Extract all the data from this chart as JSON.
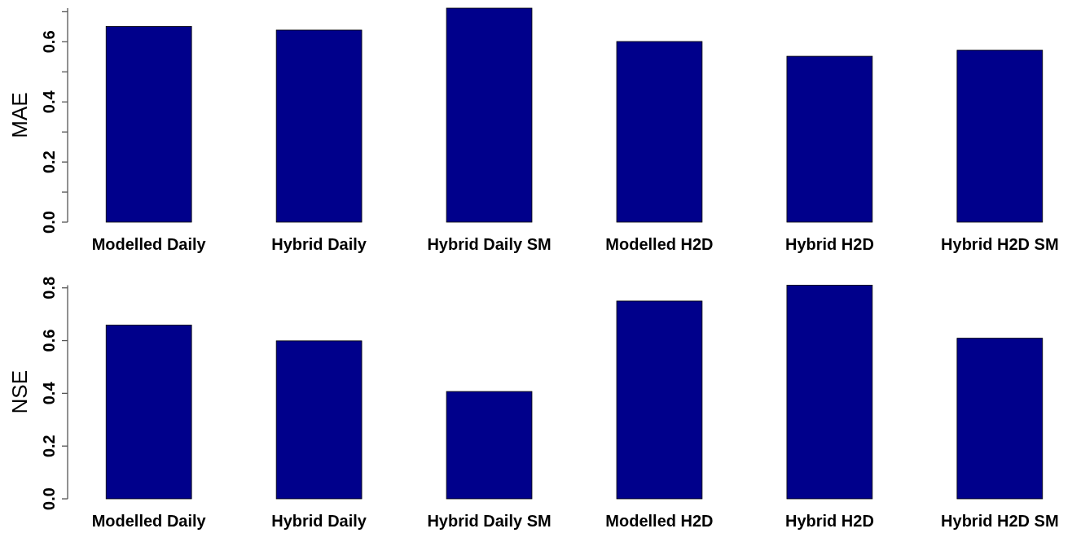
{
  "chart_data": [
    {
      "type": "bar",
      "ylabel": "MAE",
      "categories": [
        "Modelled Daily",
        "Hybrid Daily",
        "Hybrid Daily SM",
        "Modelled H2D",
        "Hybrid H2D",
        "Hybrid H2D SM"
      ],
      "values": [
        0.651,
        0.639,
        0.712,
        0.601,
        0.552,
        0.572
      ],
      "color": "#00008b",
      "ylim": [
        0,
        0.712
      ],
      "yticks": [
        {
          "value": 0,
          "label": "0.0"
        },
        {
          "value": 0.1,
          "label": null
        },
        {
          "value": 0.2,
          "label": "0.2"
        },
        {
          "value": 0.3,
          "label": null
        },
        {
          "value": 0.4,
          "label": "0.4"
        },
        {
          "value": 0.5,
          "label": null
        },
        {
          "value": 0.6,
          "label": "0.6"
        },
        {
          "value": 0.7,
          "label": null
        }
      ],
      "grid": false
    },
    {
      "type": "bar",
      "ylabel": "NSE",
      "categories": [
        "Modelled Daily",
        "Hybrid Daily",
        "Hybrid Daily SM",
        "Modelled H2D",
        "Hybrid H2D",
        "Hybrid H2D SM"
      ],
      "values": [
        0.659,
        0.599,
        0.407,
        0.75,
        0.81,
        0.609
      ],
      "color": "#00008b",
      "ylim": [
        0,
        0.81
      ],
      "yticks": [
        {
          "value": 0,
          "label": "0.0"
        },
        {
          "value": 0.2,
          "label": "0.2"
        },
        {
          "value": 0.4,
          "label": "0.4"
        },
        {
          "value": 0.6,
          "label": "0.6"
        },
        {
          "value": 0.8,
          "label": "0.8"
        }
      ],
      "grid": false
    }
  ]
}
